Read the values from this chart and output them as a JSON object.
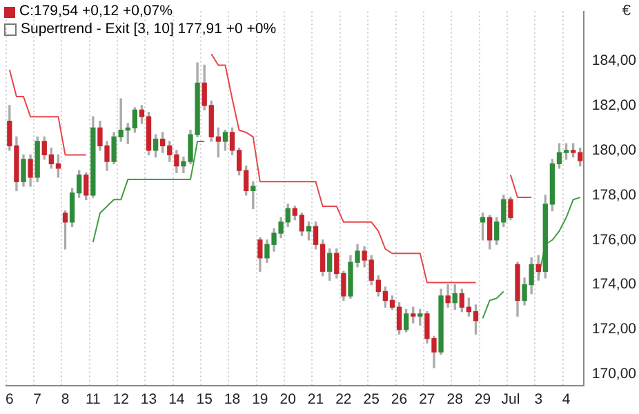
{
  "chart_data": {
    "type": "candlestick",
    "ylabel": "€",
    "annotations": [
      "C:179,54 +0,12 +0,07%",
      "Supertrend - Exit [3, 10] 177,91 +0 +0%"
    ],
    "categories": [
      "6",
      null,
      null,
      null,
      "7",
      null,
      null,
      null,
      "8",
      null,
      null,
      null,
      "11",
      null,
      null,
      null,
      "12",
      null,
      null,
      null,
      "13",
      null,
      null,
      null,
      "14",
      null,
      null,
      null,
      "15",
      null,
      null,
      null,
      "18",
      null,
      null,
      null,
      "19",
      null,
      null,
      null,
      "20",
      null,
      null,
      null,
      "21",
      null,
      null,
      null,
      "22",
      null,
      null,
      null,
      "25",
      null,
      null,
      null,
      "26",
      null,
      null,
      null,
      "27",
      null,
      null,
      null,
      "28",
      null,
      null,
      null,
      "29",
      null,
      null,
      null,
      "Jul",
      null,
      null,
      null,
      "3",
      null,
      null,
      null,
      "4",
      null,
      null
    ],
    "ohlc": [
      [
        181.3,
        182.0,
        180.0,
        180.2
      ],
      [
        180.2,
        180.6,
        178.2,
        178.6
      ],
      [
        178.6,
        179.8,
        178.4,
        179.6
      ],
      [
        179.6,
        179.8,
        178.4,
        178.8
      ],
      [
        178.8,
        180.6,
        178.6,
        180.4
      ],
      [
        180.4,
        180.6,
        179.6,
        179.8
      ],
      [
        179.8,
        180.1,
        179.2,
        179.4
      ],
      [
        179.4,
        179.8,
        178.8,
        179.2
      ],
      [
        177.2,
        177.3,
        175.6,
        176.8
      ],
      [
        176.8,
        178.3,
        176.6,
        178.1
      ],
      [
        178.1,
        179.1,
        177.9,
        178.9
      ],
      [
        178.9,
        179.0,
        177.8,
        178.0
      ],
      [
        178.0,
        181.5,
        177.9,
        181.0
      ],
      [
        181.0,
        181.3,
        180.0,
        180.2
      ],
      [
        180.2,
        180.4,
        179.1,
        179.5
      ],
      [
        179.5,
        180.8,
        179.4,
        180.6
      ],
      [
        180.6,
        182.3,
        180.4,
        180.9
      ],
      [
        180.9,
        181.2,
        180.3,
        181.0
      ],
      [
        181.0,
        181.9,
        180.8,
        181.8
      ],
      [
        181.8,
        182.0,
        181.2,
        181.5
      ],
      [
        181.5,
        181.7,
        179.8,
        180.0
      ],
      [
        180.0,
        180.7,
        179.7,
        180.5
      ],
      [
        180.5,
        180.8,
        179.9,
        180.2
      ],
      [
        180.2,
        180.4,
        179.5,
        179.8
      ],
      [
        179.8,
        180.0,
        179.0,
        179.3
      ],
      [
        179.3,
        179.7,
        179.0,
        179.5
      ],
      [
        179.5,
        180.9,
        179.4,
        180.7
      ],
      [
        180.7,
        183.9,
        180.6,
        183.0
      ],
      [
        183.0,
        183.8,
        181.8,
        182.0
      ],
      [
        182.0,
        182.2,
        180.4,
        180.6
      ],
      [
        180.6,
        181.0,
        179.7,
        180.4
      ],
      [
        180.4,
        180.9,
        180.0,
        180.8
      ],
      [
        180.8,
        181.0,
        179.8,
        180.0
      ],
      [
        180.0,
        180.1,
        178.9,
        179.1
      ],
      [
        179.1,
        179.3,
        178.0,
        178.2
      ],
      [
        178.2,
        178.6,
        177.4,
        178.4
      ],
      [
        176.0,
        176.1,
        174.6,
        175.2
      ],
      [
        175.2,
        176.0,
        175.0,
        175.8
      ],
      [
        175.8,
        176.5,
        175.5,
        176.3
      ],
      [
        176.3,
        177.0,
        176.1,
        176.8
      ],
      [
        176.8,
        177.6,
        176.6,
        177.4
      ],
      [
        177.4,
        177.5,
        176.9,
        177.1
      ],
      [
        177.1,
        177.2,
        176.2,
        176.4
      ],
      [
        176.4,
        176.8,
        176.0,
        176.6
      ],
      [
        176.6,
        176.8,
        175.6,
        175.8
      ],
      [
        175.8,
        176.0,
        174.4,
        174.6
      ],
      [
        174.6,
        175.6,
        174.2,
        175.4
      ],
      [
        175.4,
        175.6,
        174.3,
        174.5
      ],
      [
        174.5,
        174.6,
        173.3,
        173.5
      ],
      [
        173.5,
        175.3,
        173.4,
        175.0
      ],
      [
        175.0,
        175.8,
        174.8,
        175.5
      ],
      [
        175.5,
        175.7,
        174.8,
        175.1
      ],
      [
        175.1,
        175.3,
        174.0,
        174.2
      ],
      [
        174.2,
        174.4,
        173.5,
        173.7
      ],
      [
        173.7,
        173.9,
        173.0,
        173.3
      ],
      [
        173.3,
        173.5,
        172.9,
        173.0
      ],
      [
        173.0,
        173.2,
        171.8,
        172.0
      ],
      [
        172.0,
        172.9,
        171.9,
        172.7
      ],
      [
        172.7,
        173.0,
        172.3,
        172.6
      ],
      [
        172.6,
        172.9,
        172.2,
        172.7
      ],
      [
        172.7,
        172.8,
        171.4,
        171.6
      ],
      [
        171.6,
        171.7,
        170.3,
        171.0
      ],
      [
        171.0,
        173.8,
        170.9,
        173.5
      ],
      [
        173.5,
        174.0,
        173.0,
        173.2
      ],
      [
        173.2,
        174.0,
        172.9,
        173.6
      ],
      [
        173.6,
        173.8,
        172.8,
        173.0
      ],
      [
        173.0,
        173.4,
        172.6,
        172.8
      ],
      [
        172.8,
        173.1,
        171.8,
        172.4
      ],
      [
        176.8,
        177.2,
        176.0,
        177.0
      ],
      [
        177.0,
        177.1,
        175.6,
        176.0
      ],
      [
        176.0,
        177.0,
        175.8,
        176.8
      ],
      [
        176.8,
        178.0,
        176.6,
        177.8
      ],
      [
        177.8,
        177.9,
        176.9,
        177.0
      ],
      [
        174.9,
        175.0,
        172.6,
        173.3
      ],
      [
        173.3,
        174.3,
        173.1,
        174.0
      ],
      [
        174.0,
        175.2,
        173.6,
        174.9
      ],
      [
        174.9,
        175.3,
        174.2,
        174.6
      ],
      [
        174.6,
        178.0,
        174.3,
        177.6
      ],
      [
        177.6,
        179.6,
        177.3,
        179.4
      ],
      [
        179.4,
        180.3,
        179.2,
        179.9
      ],
      [
        179.9,
        180.3,
        179.6,
        180.0
      ],
      [
        180.0,
        180.3,
        179.7,
        179.9
      ],
      [
        179.9,
        180.1,
        179.3,
        179.54
      ]
    ],
    "series": [
      {
        "type": "line",
        "color": "#e8454a",
        "values": [
          183.6,
          182.4,
          182.4,
          181.5,
          181.5,
          181.5,
          181.5,
          181.5,
          179.8,
          179.8,
          179.8,
          179.8,
          null,
          null,
          null,
          null,
          null,
          null,
          null,
          null,
          null,
          null,
          null,
          null,
          null,
          null,
          null,
          null,
          null,
          184.3,
          183.8,
          183.8,
          182.3,
          180.9,
          180.8,
          180.6,
          178.6,
          178.6,
          178.6,
          178.6,
          178.6,
          178.6,
          178.6,
          178.6,
          178.6,
          177.5,
          177.5,
          177.5,
          176.8,
          176.8,
          176.8,
          176.8,
          176.8,
          176.4,
          175.6,
          175.4,
          175.4,
          175.4,
          175.4,
          175.4,
          174.1,
          174.1,
          174.1,
          174.1,
          174.1,
          174.1,
          174.1,
          174.1,
          null,
          null,
          null,
          null,
          178.9,
          177.9,
          177.9,
          177.9,
          null,
          null,
          null,
          null,
          null,
          null,
          null
        ]
      },
      {
        "type": "line",
        "color": "#3f9f3f",
        "values": [
          null,
          null,
          null,
          null,
          null,
          null,
          null,
          null,
          null,
          null,
          null,
          null,
          175.9,
          177.2,
          177.5,
          177.8,
          177.8,
          178.7,
          178.7,
          178.7,
          178.7,
          178.7,
          178.7,
          178.7,
          178.7,
          178.7,
          178.7,
          180.4,
          180.4,
          null,
          null,
          null,
          null,
          null,
          null,
          null,
          null,
          null,
          null,
          null,
          null,
          null,
          null,
          null,
          null,
          null,
          null,
          null,
          null,
          null,
          null,
          null,
          null,
          null,
          null,
          null,
          null,
          null,
          null,
          null,
          null,
          null,
          null,
          null,
          null,
          null,
          null,
          null,
          172.5,
          173.3,
          173.4,
          173.7,
          null,
          null,
          null,
          null,
          174.3,
          175.8,
          176.0,
          176.4,
          177.0,
          177.8,
          177.9
        ]
      }
    ],
    "colors": [
      "#c8232c",
      "#c8232c",
      "#2e8b3a",
      "#c8232c",
      "#2e8b3a",
      "#c8232c",
      "#c8232c",
      "#c8232c",
      "#c8232c",
      "#2e8b3a",
      "#2e8b3a",
      "#c8232c",
      "#2e8b3a",
      "#c8232c",
      "#c8232c",
      "#2e8b3a",
      "#2e8b3a",
      "#2e8b3a",
      "#2e8b3a",
      "#c8232c",
      "#c8232c",
      "#2e8b3a",
      "#c8232c",
      "#c8232c",
      "#c8232c",
      "#2e8b3a",
      "#2e8b3a",
      "#2e8b3a",
      "#c8232c",
      "#c8232c",
      "#c8232c",
      "#2e8b3a",
      "#c8232c",
      "#c8232c",
      "#c8232c",
      "#2e8b3a",
      "#c8232c",
      "#2e8b3a",
      "#2e8b3a",
      "#2e8b3a",
      "#2e8b3a",
      "#c8232c",
      "#c8232c",
      "#2e8b3a",
      "#c8232c",
      "#c8232c",
      "#2e8b3a",
      "#c8232c",
      "#c8232c",
      "#2e8b3a",
      "#2e8b3a",
      "#c8232c",
      "#c8232c",
      "#c8232c",
      "#c8232c",
      "#c8232c",
      "#c8232c",
      "#2e8b3a",
      "#c8232c",
      "#2e8b3a",
      "#c8232c",
      "#c8232c",
      "#2e8b3a",
      "#c8232c",
      "#2e8b3a",
      "#c8232c",
      "#c8232c",
      "#c8232c",
      "#2e8b3a",
      "#c8232c",
      "#2e8b3a",
      "#2e8b3a",
      "#c8232c",
      "#c8232c",
      "#2e8b3a",
      "#2e8b3a",
      "#c8232c",
      "#2e8b3a",
      "#2e8b3a",
      "#2e8b3a",
      "#2e8b3a",
      "#c8232c",
      "#c8232c"
    ],
    "ylim": [
      169.5,
      186.2
    ],
    "yticks": [
      {
        "value": 170,
        "label": "170,00"
      },
      {
        "value": 172,
        "label": "172,00"
      },
      {
        "value": 174,
        "label": "174,00"
      },
      {
        "value": 176,
        "label": "176,00"
      },
      {
        "value": 178,
        "label": "178,00"
      },
      {
        "value": 180,
        "label": "180,00"
      },
      {
        "value": 182,
        "label": "182,00"
      },
      {
        "value": 184,
        "label": "184,00"
      }
    ],
    "grid": "x"
  }
}
